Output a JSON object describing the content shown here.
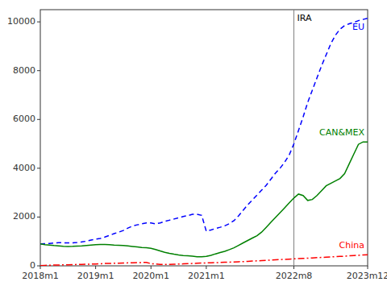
{
  "chart_data": {
    "type": "line",
    "categories": [
      "2018m1",
      null,
      null,
      null,
      null,
      null,
      null,
      null,
      null,
      null,
      null,
      null,
      "2019m1",
      null,
      null,
      null,
      null,
      null,
      null,
      null,
      null,
      null,
      null,
      null,
      "2020m1",
      null,
      null,
      null,
      null,
      null,
      null,
      null,
      null,
      null,
      null,
      null,
      "2021m1",
      null,
      null,
      null,
      null,
      null,
      null,
      null,
      null,
      null,
      null,
      null,
      null,
      null,
      null,
      null,
      null,
      null,
      null,
      "2022m8",
      null,
      null,
      null,
      null,
      null,
      null,
      null,
      null,
      null,
      null,
      null,
      null,
      null,
      null,
      null,
      "2023m12"
    ],
    "ylim": [
      0,
      10500
    ],
    "yticks": [
      0,
      2000,
      4000,
      6000,
      8000,
      10000
    ],
    "grid": false,
    "annotations": [
      {
        "label": "IRA",
        "x": "2022m8"
      }
    ],
    "series": [
      {
        "name": "EU",
        "color": "#0000FF",
        "line_style": "dashed",
        "values": [
          900,
          910,
          920,
          940,
          950,
          945,
          940,
          945,
          960,
          980,
          1010,
          1060,
          1090,
          1120,
          1180,
          1250,
          1320,
          1380,
          1450,
          1550,
          1630,
          1680,
          1720,
          1760,
          1760,
          1720,
          1760,
          1820,
          1870,
          1920,
          1970,
          2020,
          2060,
          2110,
          2110,
          2070,
          1420,
          1470,
          1530,
          1580,
          1640,
          1730,
          1850,
          2050,
          2280,
          2500,
          2700,
          2900,
          3100,
          3300,
          3550,
          3800,
          4000,
          4250,
          4550,
          5000,
          5550,
          6100,
          6700,
          7200,
          7700,
          8200,
          8650,
          9100,
          9450,
          9700,
          9850,
          9920,
          9980,
          10050,
          10100,
          10150
        ]
      },
      {
        "name": "CAN&MEX",
        "color": "#008000",
        "line_style": "solid",
        "values": [
          900,
          870,
          850,
          830,
          815,
          800,
          795,
          800,
          810,
          820,
          835,
          850,
          865,
          875,
          875,
          865,
          850,
          840,
          830,
          815,
          795,
          775,
          755,
          740,
          720,
          670,
          610,
          555,
          510,
          475,
          445,
          425,
          415,
          395,
          375,
          370,
          385,
          430,
          490,
          545,
          595,
          665,
          740,
          840,
          940,
          1040,
          1140,
          1235,
          1380,
          1580,
          1780,
          1980,
          2180,
          2380,
          2580,
          2780,
          2940,
          2880,
          2680,
          2720,
          2880,
          3080,
          3280,
          3380,
          3480,
          3580,
          3780,
          4180,
          4580,
          4980,
          5080,
          5080
        ]
      },
      {
        "name": "China",
        "color": "#FF0000",
        "line_style": "dashdot",
        "values": [
          10,
          20,
          25,
          30,
          35,
          40,
          45,
          50,
          55,
          60,
          65,
          70,
          75,
          85,
          95,
          100,
          105,
          110,
          115,
          120,
          125,
          130,
          135,
          140,
          90,
          75,
          60,
          55,
          60,
          65,
          72,
          80,
          88,
          95,
          105,
          115,
          120,
          125,
          130,
          138,
          145,
          152,
          160,
          168,
          175,
          185,
          195,
          205,
          215,
          225,
          235,
          245,
          255,
          265,
          275,
          285,
          295,
          305,
          315,
          325,
          335,
          345,
          355,
          365,
          375,
          385,
          395,
          408,
          420,
          432,
          445,
          458
        ]
      }
    ]
  }
}
